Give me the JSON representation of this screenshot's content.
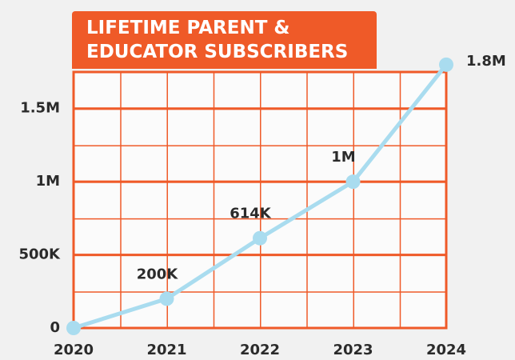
{
  "chart_data": {
    "type": "line",
    "title": "LIFETIME PARENT & EDUCATOR SUBSCRIBERS",
    "x": [
      "2020",
      "2021",
      "2022",
      "2023",
      "2024"
    ],
    "series": [
      {
        "color": "#a9dcef",
        "values": [
          0,
          200000,
          614000,
          1000000,
          1800000
        ],
        "value_labels": [
          null,
          "200K",
          "614K",
          "1M",
          "1.8M"
        ]
      }
    ],
    "ylim": [
      0,
      1750000
    ],
    "yticks": [
      0,
      {
        "value": 500000,
        "label": "500K"
      },
      {
        "value": 1000000,
        "label": "1M"
      },
      {
        "value": 1500000,
        "label": "1.5M"
      }
    ],
    "grid": true,
    "grid_color": "#ef5a28"
  }
}
